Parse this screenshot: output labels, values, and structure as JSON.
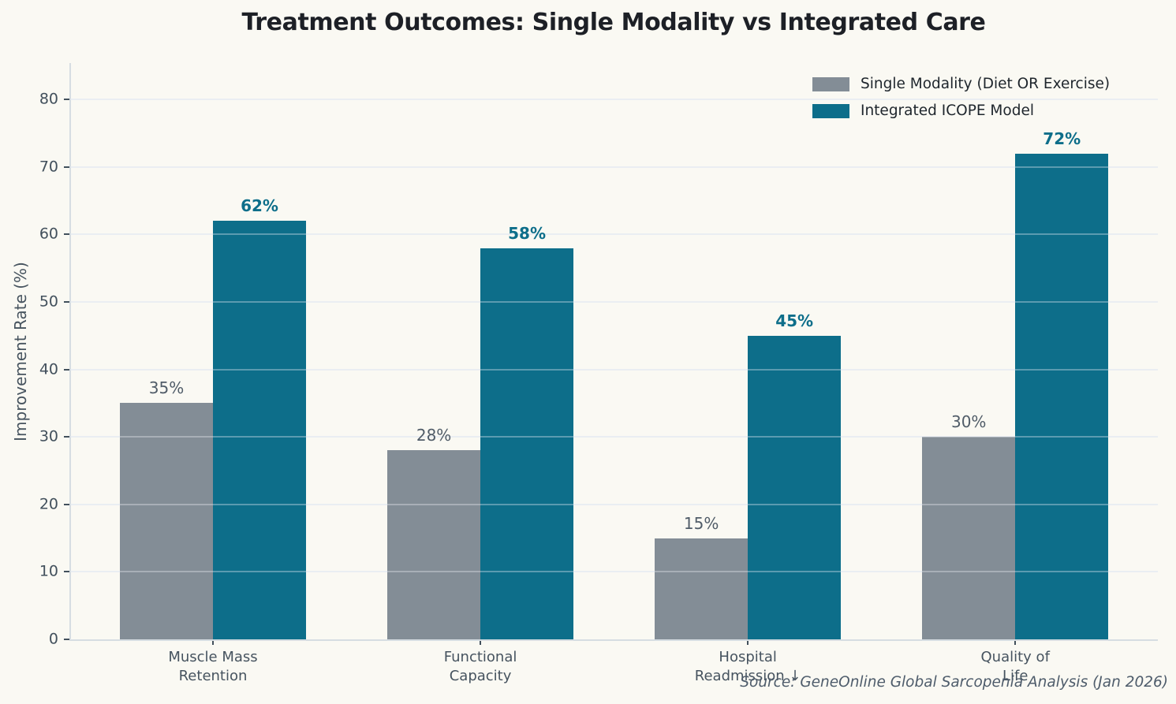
{
  "source_note": "Source: GeneOnline Global Sarcopenia Analysis (Jan 2026)",
  "colors": {
    "background": "#faf9f3",
    "title_text": "#1d2026",
    "gridline": "#e9edf0",
    "gridline_overlay": "rgba(238,242,245,0.35)",
    "axis_spine": "#d6dde2",
    "tick_text": "#42505c",
    "category_text": "#46535f",
    "single_modality_bar": "#838d96",
    "integrated_bar": "#0d6e8a",
    "value_label_single": "#505c68",
    "value_label_integrated": "#0d6e8a",
    "legend_text": "#1e252c",
    "source_text": "#4e5c6b"
  },
  "chart_data": {
    "type": "bar",
    "title": "Treatment Outcomes: Single Modality vs Integrated Care",
    "categories": [
      "Muscle Mass\nRetention",
      "Functional\nCapacity",
      "Hospital\nReadmission ↓",
      "Quality of\nLife"
    ],
    "series": [
      {
        "name": "Single Modality (Diet OR Exercise)",
        "color": "#838d96",
        "values": [
          35,
          28,
          15,
          30
        ]
      },
      {
        "name": "Integrated ICOPE Model",
        "color": "#0d6e8a",
        "values": [
          62,
          58,
          45,
          72
        ]
      }
    ],
    "value_label_format": "{value}%",
    "ylabel": "Improvement Rate (%)",
    "xlabel": "",
    "yticks": [
      0,
      10,
      20,
      30,
      40,
      50,
      60,
      70,
      80
    ],
    "ylim": [
      0,
      85.4
    ],
    "grid": true,
    "grid_axis": "y",
    "grid_above_bars": true,
    "legend_position": "upper right"
  }
}
